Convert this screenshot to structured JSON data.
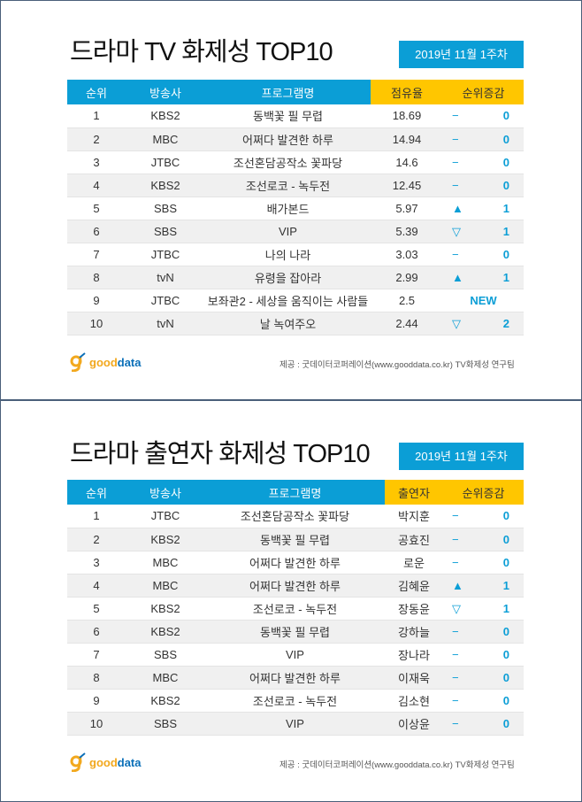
{
  "panel1": {
    "title": "드라마 TV 화제성 TOP10",
    "date": "2019년 11월 1주차",
    "headers": [
      "순위",
      "방송사",
      "프로그램명",
      "점유율",
      "순위증감"
    ],
    "rows": [
      {
        "rank": "1",
        "broadcaster": "KBS2",
        "program": "동백꽃 필 무렵",
        "value": "18.69",
        "symbol": "−",
        "change": "0"
      },
      {
        "rank": "2",
        "broadcaster": "MBC",
        "program": "어쩌다 발견한 하루",
        "value": "14.94",
        "symbol": "−",
        "change": "0"
      },
      {
        "rank": "3",
        "broadcaster": "JTBC",
        "program": "조선혼담공작소 꽃파당",
        "value": "14.6",
        "symbol": "−",
        "change": "0"
      },
      {
        "rank": "4",
        "broadcaster": "KBS2",
        "program": "조선로코 - 녹두전",
        "value": "12.45",
        "symbol": "−",
        "change": "0"
      },
      {
        "rank": "5",
        "broadcaster": "SBS",
        "program": "배가본드",
        "value": "5.97",
        "symbol": "▲",
        "change": "1"
      },
      {
        "rank": "6",
        "broadcaster": "SBS",
        "program": "VIP",
        "value": "5.39",
        "symbol": "▽",
        "change": "1"
      },
      {
        "rank": "7",
        "broadcaster": "JTBC",
        "program": "나의 나라",
        "value": "3.03",
        "symbol": "−",
        "change": "0"
      },
      {
        "rank": "8",
        "broadcaster": "tvN",
        "program": "유령을 잡아라",
        "value": "2.99",
        "symbol": "▲",
        "change": "1"
      },
      {
        "rank": "9",
        "broadcaster": "JTBC",
        "program": "보좌관2 - 세상을 움직이는 사람들",
        "value": "2.5",
        "symbol": "",
        "change": "NEW"
      },
      {
        "rank": "10",
        "broadcaster": "tvN",
        "program": "날 녹여주오",
        "value": "2.44",
        "symbol": "▽",
        "change": "2"
      }
    ],
    "logo": "gooddata",
    "credit": "제공 : 굿데이터코퍼레이션(www.gooddata.co.kr) TV화제성 연구팀"
  },
  "panel2": {
    "title": "드라마 출연자 화제성 TOP10",
    "date": "2019년 11월 1주차",
    "headers": [
      "순위",
      "방송사",
      "프로그램명",
      "출연자",
      "순위증감"
    ],
    "rows": [
      {
        "rank": "1",
        "broadcaster": "JTBC",
        "program": "조선혼담공작소 꽃파당",
        "value": "박지훈",
        "symbol": "−",
        "change": "0"
      },
      {
        "rank": "2",
        "broadcaster": "KBS2",
        "program": "동백꽃 필 무렵",
        "value": "공효진",
        "symbol": "−",
        "change": "0"
      },
      {
        "rank": "3",
        "broadcaster": "MBC",
        "program": "어쩌다 발견한 하루",
        "value": "로운",
        "symbol": "−",
        "change": "0"
      },
      {
        "rank": "4",
        "broadcaster": "MBC",
        "program": "어쩌다 발견한 하루",
        "value": "김혜윤",
        "symbol": "▲",
        "change": "1"
      },
      {
        "rank": "5",
        "broadcaster": "KBS2",
        "program": "조선로코 - 녹두전",
        "value": "장동윤",
        "symbol": "▽",
        "change": "1"
      },
      {
        "rank": "6",
        "broadcaster": "KBS2",
        "program": "동백꽃 필 무렵",
        "value": "강하늘",
        "symbol": "−",
        "change": "0"
      },
      {
        "rank": "7",
        "broadcaster": "SBS",
        "program": "VIP",
        "value": "장나라",
        "symbol": "−",
        "change": "0"
      },
      {
        "rank": "8",
        "broadcaster": "MBC",
        "program": "어쩌다 발견한 하루",
        "value": "이재욱",
        "symbol": "−",
        "change": "0"
      },
      {
        "rank": "9",
        "broadcaster": "KBS2",
        "program": "조선로코 - 녹두전",
        "value": "김소현",
        "symbol": "−",
        "change": "0"
      },
      {
        "rank": "10",
        "broadcaster": "SBS",
        "program": "VIP",
        "value": "이상윤",
        "symbol": "−",
        "change": "0"
      }
    ],
    "logo": "gooddata",
    "credit": "제공 : 굿데이터코퍼레이션(www.gooddata.co.kr) TV화제성 연구팀"
  },
  "colors": {
    "blue": "#0b9ed6",
    "yellow": "#ffc600"
  }
}
